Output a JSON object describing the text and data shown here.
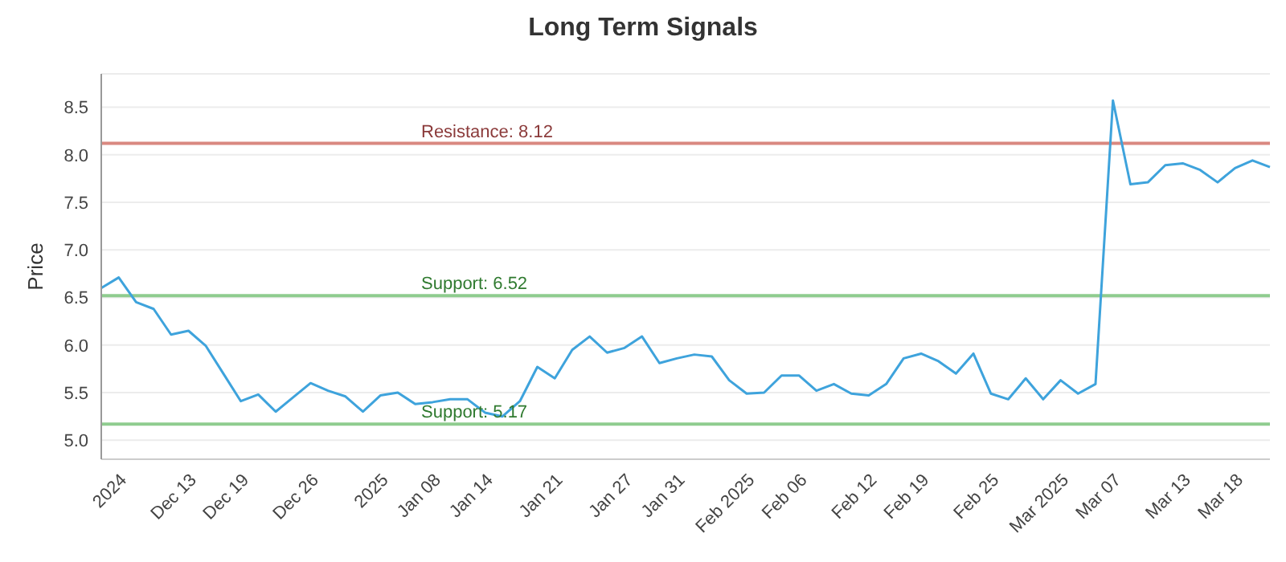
{
  "chart_data": {
    "type": "line",
    "title": "Long Term Signals",
    "ylabel": "Price",
    "categories": [
      null,
      "2024",
      null,
      null,
      null,
      "Dec 13",
      null,
      null,
      "Dec 19",
      null,
      null,
      null,
      "Dec 26",
      null,
      null,
      null,
      "2025",
      null,
      null,
      "Jan 08",
      null,
      null,
      "Jan 14",
      null,
      null,
      null,
      "Jan 21",
      null,
      null,
      null,
      "Jan 27",
      null,
      null,
      "Jan 31",
      null,
      null,
      null,
      "Feb 2025",
      null,
      null,
      "Feb 06",
      null,
      null,
      null,
      "Feb 12",
      null,
      null,
      "Feb 19",
      null,
      null,
      null,
      "Feb 25",
      null,
      null,
      null,
      "Mar 2025",
      null,
      null,
      "Mar 07",
      null,
      null,
      null,
      "Mar 13",
      null,
      null,
      "Mar 18",
      null,
      null
    ],
    "series": [
      {
        "color": "#3ea3dc",
        "values": [
          6.6,
          6.71,
          6.45,
          6.38,
          6.11,
          6.15,
          5.99,
          5.7,
          5.41,
          5.48,
          5.3,
          5.45,
          5.6,
          5.52,
          5.46,
          5.3,
          5.47,
          5.5,
          5.38,
          5.4,
          5.43,
          5.43,
          5.29,
          5.25,
          5.41,
          5.77,
          5.65,
          5.95,
          6.09,
          5.92,
          5.97,
          6.09,
          5.81,
          5.86,
          5.9,
          5.88,
          5.63,
          5.49,
          5.5,
          5.68,
          5.68,
          5.52,
          5.59,
          5.49,
          5.47,
          5.59,
          5.86,
          5.91,
          5.83,
          5.7,
          5.91,
          5.49,
          5.43,
          5.65,
          5.43,
          5.63,
          5.49,
          5.59,
          8.57,
          7.69,
          7.71,
          7.89,
          7.91,
          7.84,
          7.71,
          7.86,
          7.94,
          7.87
        ]
      }
    ],
    "ylim": [
      4.8,
      8.85
    ],
    "yticks": [
      {
        "value": 5,
        "label": "5.0"
      },
      5.5,
      {
        "value": 6,
        "label": "6.0"
      },
      6.5,
      {
        "value": 7,
        "label": "7.0"
      },
      7.5,
      {
        "value": 8,
        "label": "8.0"
      },
      8.5
    ],
    "grid": "y",
    "marker": "none",
    "line_style": "solid",
    "legend": false,
    "ref_lines": [
      {
        "axis": "y",
        "value": 8.12,
        "label": "Resistance: 8.12",
        "color": "#d98880"
      },
      {
        "axis": "y",
        "value": 6.52,
        "label": "Support: 6.52",
        "color": "#8fcc8f"
      },
      {
        "axis": "y",
        "value": 5.17,
        "label": "Support: 5.17",
        "color": "#8fcc8f"
      }
    ]
  }
}
